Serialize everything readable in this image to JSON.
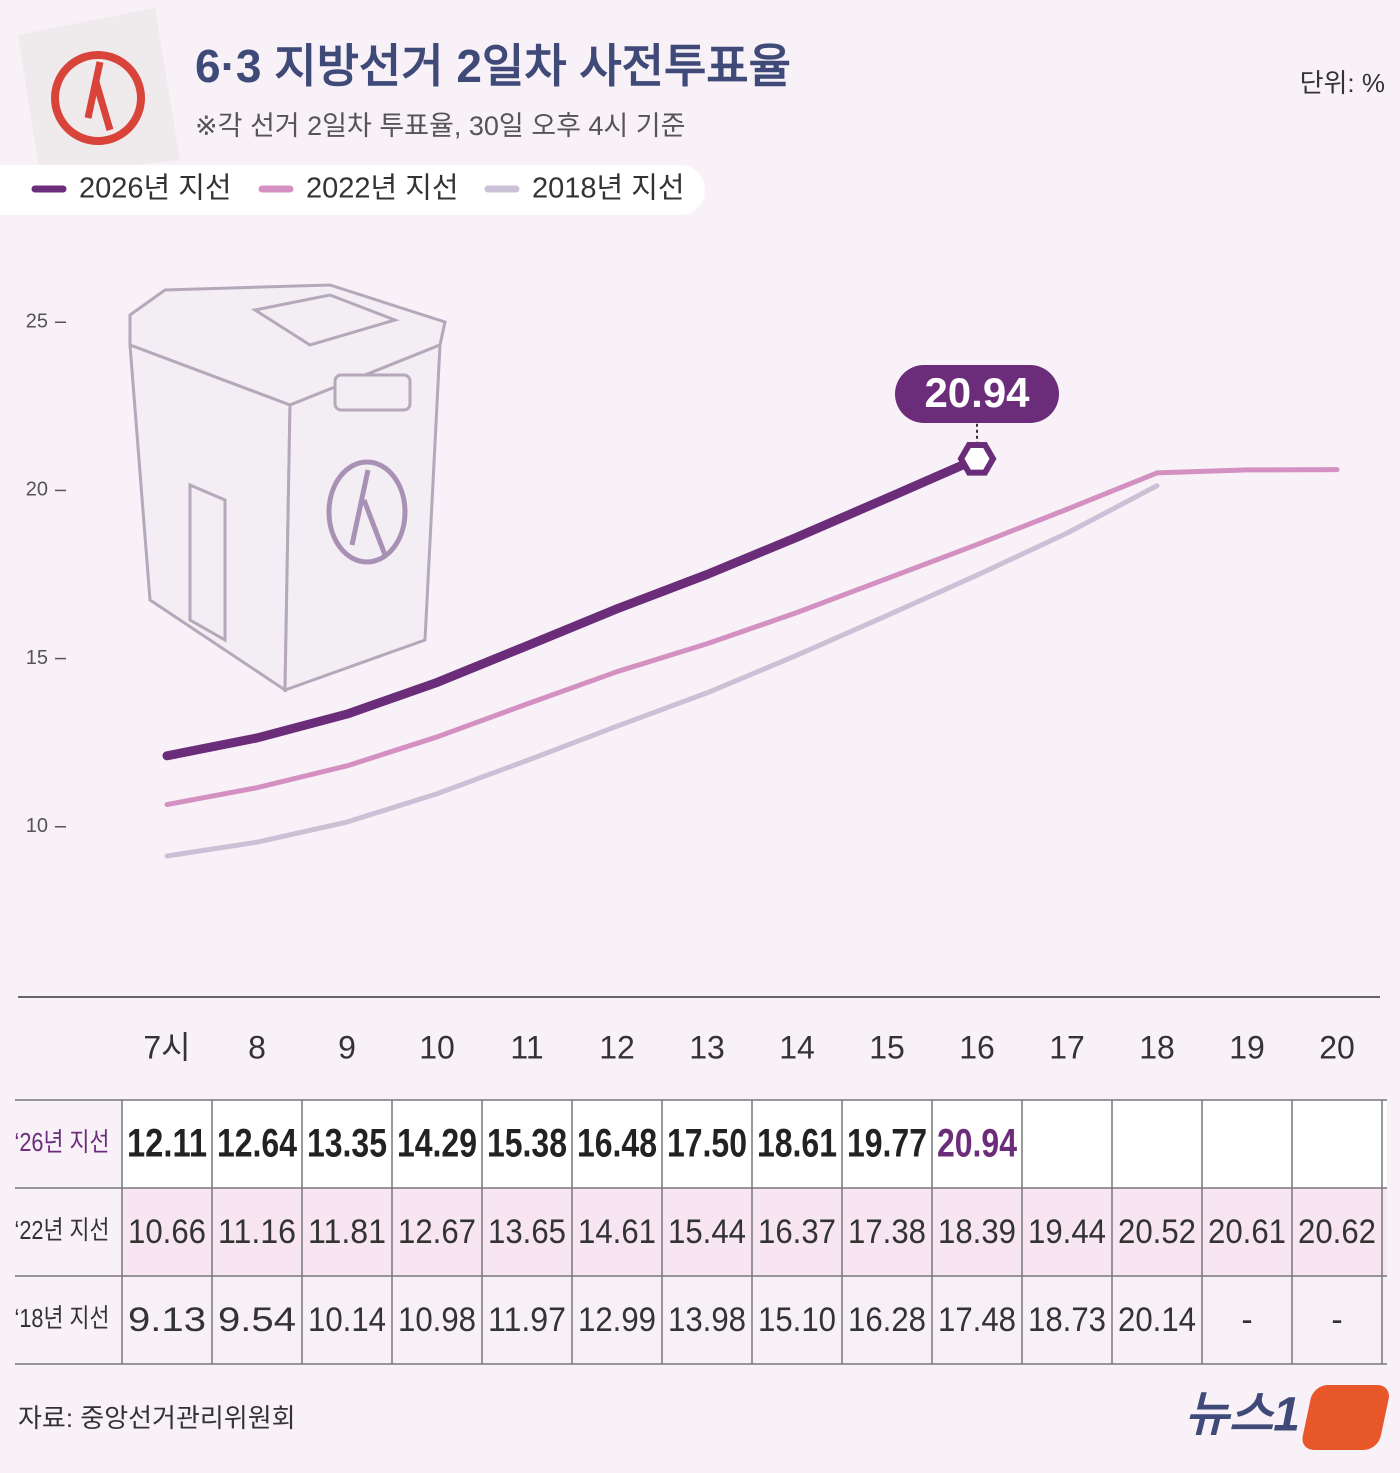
{
  "title": "6·3 지방선거 2일차 사전투표율",
  "subtitle": "※각 선거 2일차 투표율, 30일 오후 4시 기준",
  "unit": "단위: %",
  "source": "자료: 중앙선거관리위원회",
  "logo": "뉴스1",
  "chart_data": {
    "type": "line",
    "categories": [
      "7시",
      "8",
      "9",
      "10",
      "11",
      "12",
      "13",
      "14",
      "15",
      "16",
      "17",
      "18",
      "19",
      "20"
    ],
    "series": [
      {
        "name": "2026년 지선",
        "row_label": "‘26년 지선",
        "color": "#6b2c7a",
        "values": [
          12.11,
          12.64,
          13.35,
          14.29,
          15.38,
          16.48,
          17.5,
          18.61,
          19.77,
          20.94,
          null,
          null,
          null,
          null
        ],
        "value_labels": [
          "12.11",
          "12.64",
          "13.35",
          "14.29",
          "15.38",
          "16.48",
          "17.50",
          "18.61",
          "19.77",
          "20.94",
          null,
          null,
          null,
          null
        ]
      },
      {
        "name": "2022년 지선",
        "row_label": "‘22년 지선",
        "color": "#d490c0",
        "values": [
          10.66,
          11.16,
          11.81,
          12.67,
          13.65,
          14.61,
          15.44,
          16.37,
          17.38,
          18.39,
          19.44,
          20.52,
          20.61,
          20.62
        ],
        "value_labels": [
          "10.66",
          "11.16",
          "11.81",
          "12.67",
          "13.65",
          "14.61",
          "15.44",
          "16.37",
          "17.38",
          "18.39",
          "19.44",
          "20.52",
          "20.61",
          "20.62"
        ]
      },
      {
        "name": "2018년 지선",
        "row_label": "‘18년 지선",
        "color": "#cbc1d6",
        "values": [
          9.13,
          9.54,
          10.14,
          10.98,
          11.97,
          12.99,
          13.98,
          15.1,
          16.28,
          17.48,
          18.73,
          20.14,
          null,
          null
        ],
        "value_labels": [
          "9.13",
          "9.54",
          "10.14",
          "10.98",
          "11.97",
          "12.99",
          "13.98",
          "15.10",
          "16.28",
          "17.48",
          "18.73",
          "20.14",
          "-",
          "-"
        ]
      }
    ],
    "ylim": [
      8,
      27
    ],
    "yticks": [
      10,
      15,
      20,
      25
    ]
  }
}
